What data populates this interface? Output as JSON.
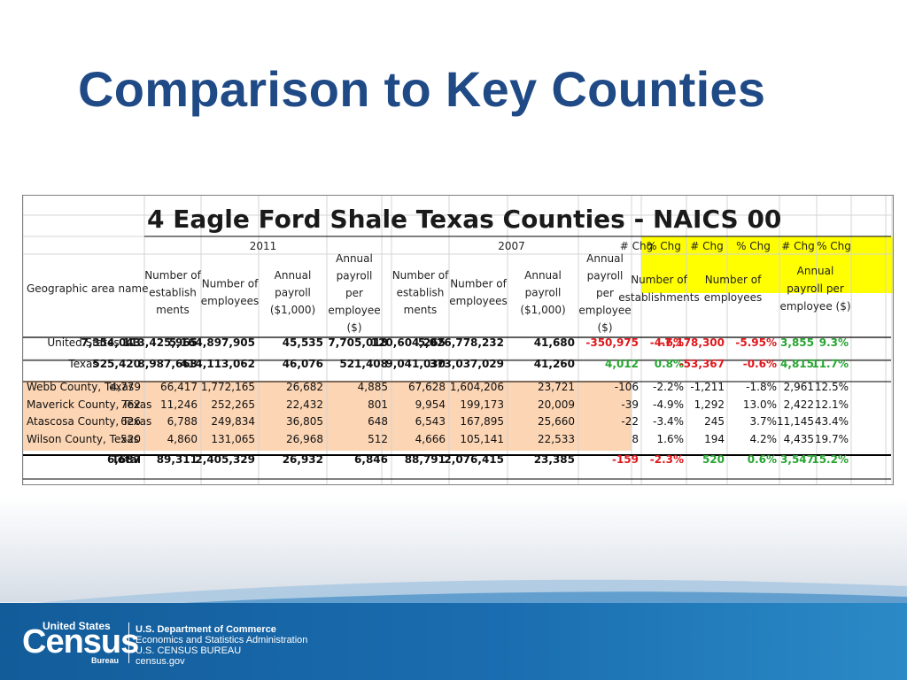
{
  "slide": {
    "title": "Comparison to Key Counties"
  },
  "table": {
    "caption": "4 Eagle Ford Shale Texas Counties - NAICS 00",
    "year_a": "2011",
    "year_b": "2007",
    "chg_labels": [
      "# Chg",
      "% Chg",
      "# Chg",
      "% Chg",
      "# Chg",
      "% Chg"
    ],
    "geo_header": "Geographic area name",
    "col_headers": [
      [
        "Number of",
        "establish",
        "ments"
      ],
      [
        "Number of",
        "employees"
      ],
      [
        "Annual",
        "payroll",
        "($1,000)"
      ],
      [
        "Annual",
        "payroll",
        "per",
        "employee",
        "($)"
      ]
    ],
    "chg_groups": [
      [
        "Number of",
        "establishments"
      ],
      [
        "Number of",
        "employees"
      ],
      [
        "Annual",
        "payroll per",
        "employee ($)"
      ]
    ],
    "rows": [
      {
        "name": "United States",
        "v": [
          "7,354,043",
          "113,425,965",
          "5,164,897,905",
          "45,535",
          "7,705,018",
          "120,604,265",
          "5,026,778,232",
          "41,680"
        ],
        "chg": [
          "-350,975",
          "-4.6%",
          "-7,178,300",
          "-5.95%",
          "3,855",
          "9.3%"
        ]
      },
      {
        "name": "Texas",
        "v": [
          "525,420",
          "8,987,663",
          "414,113,062",
          "46,076",
          "521,408",
          "9,041,030",
          "373,037,029",
          "41,260"
        ],
        "chg": [
          "4,012",
          "0.8%",
          "-53,367",
          "-0.6%",
          "4,815",
          "11.7%"
        ]
      },
      {
        "name": "Webb County, Texas",
        "v": [
          "4,779",
          "66,417",
          "1,772,165",
          "26,682",
          "4,885",
          "67,628",
          "1,604,206",
          "23,721"
        ],
        "chg": [
          "-106",
          "-2.2%",
          "-1,211",
          "-1.8%",
          "2,961",
          "12.5%"
        ]
      },
      {
        "name": "Maverick County, Texas",
        "v": [
          "762",
          "11,246",
          "252,265",
          "22,432",
          "801",
          "9,954",
          "199,173",
          "20,009"
        ],
        "chg": [
          "-39",
          "-4.9%",
          "1,292",
          "13.0%",
          "2,422",
          "12.1%"
        ]
      },
      {
        "name": "Atascosa County, Texas",
        "v": [
          "626",
          "6,788",
          "249,834",
          "36,805",
          "648",
          "6,543",
          "167,895",
          "25,660"
        ],
        "chg": [
          "-22",
          "-3.4%",
          "245",
          "3.7%",
          "11,145",
          "43.4%"
        ]
      },
      {
        "name": "Wilson County, Texas",
        "v": [
          "520",
          "4,860",
          "131,065",
          "26,968",
          "512",
          "4,666",
          "105,141",
          "22,533"
        ],
        "chg": [
          "8",
          "1.6%",
          "194",
          "4.2%",
          "4,435",
          "19.7%"
        ]
      },
      {
        "name": "Total",
        "v": [
          "6,687",
          "89,311",
          "2,405,329",
          "26,932",
          "6,846",
          "88,791",
          "2,076,415",
          "23,385"
        ],
        "chg": [
          "-159",
          "-2.3%",
          "520",
          "0.6%",
          "3,547",
          "15.2%"
        ]
      }
    ]
  },
  "footer": {
    "logo_top": "United States",
    "logo_main": "Census",
    "logo_bottom": "Bureau",
    "line1": "U.S. Department of Commerce",
    "line2": "Economics and Statistics Administration",
    "line3": "U.S. CENSUS BUREAU",
    "line4": "census.gov"
  },
  "colors": {
    "title": "#1f4a86",
    "highlight_yellow": "#ffff00",
    "county_peach": "#fcd5b4",
    "negative": "#e0181c",
    "positive": "#27a531",
    "footer_blue": "#1a6db0"
  }
}
